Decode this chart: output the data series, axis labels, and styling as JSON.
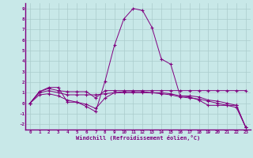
{
  "xlabel": "Windchill (Refroidissement éolien,°C)",
  "bg_color": "#c8e8e8",
  "line_color": "#800080",
  "grid_color": "#aacccc",
  "xlim": [
    -0.5,
    23.5
  ],
  "ylim": [
    -2.5,
    9.5
  ],
  "yticks": [
    -2,
    -1,
    0,
    1,
    2,
    3,
    4,
    5,
    6,
    7,
    8,
    9
  ],
  "xticks": [
    0,
    1,
    2,
    3,
    4,
    5,
    6,
    7,
    8,
    9,
    10,
    11,
    12,
    13,
    14,
    15,
    16,
    17,
    18,
    19,
    20,
    21,
    22,
    23
  ],
  "line1_x": [
    0,
    1,
    2,
    3,
    4,
    5,
    6,
    7,
    8,
    9,
    10,
    11,
    12,
    13,
    14,
    15,
    16,
    17,
    18,
    19,
    20,
    21,
    22,
    23
  ],
  "line1_y": [
    0,
    1.1,
    1.5,
    1.5,
    0.1,
    0.1,
    -0.3,
    -0.8,
    2.1,
    5.5,
    8.0,
    9.0,
    8.8,
    7.2,
    4.2,
    3.7,
    0.7,
    0.6,
    0.3,
    -0.2,
    -0.2,
    -0.2,
    -0.2,
    -2.3
  ],
  "line2_x": [
    0,
    1,
    2,
    3,
    4,
    5,
    6,
    7,
    8,
    9,
    10,
    11,
    12,
    13,
    14,
    15,
    16,
    17,
    18,
    19,
    20,
    21,
    22,
    23
  ],
  "line2_y": [
    0,
    1.1,
    1.4,
    1.2,
    1.1,
    1.1,
    1.1,
    0.5,
    1.2,
    1.2,
    1.2,
    1.2,
    1.2,
    1.2,
    1.2,
    1.2,
    1.2,
    1.2,
    1.2,
    1.2,
    1.2,
    1.2,
    1.2,
    1.2
  ],
  "line3_x": [
    0,
    1,
    2,
    3,
    4,
    5,
    6,
    7,
    8,
    9,
    10,
    11,
    12,
    13,
    14,
    15,
    16,
    17,
    18,
    19,
    20,
    21,
    22,
    23
  ],
  "line3_y": [
    0,
    1.0,
    1.2,
    1.0,
    0.8,
    0.8,
    0.8,
    0.8,
    0.9,
    1.0,
    1.0,
    1.0,
    1.0,
    1.0,
    1.0,
    0.9,
    0.7,
    0.7,
    0.6,
    0.3,
    0.2,
    0.0,
    -0.2,
    -2.3
  ],
  "line4_x": [
    0,
    1,
    2,
    3,
    4,
    5,
    6,
    7,
    8,
    9,
    10,
    11,
    12,
    13,
    14,
    15,
    16,
    17,
    18,
    19,
    20,
    21,
    22,
    23
  ],
  "line4_y": [
    0,
    0.8,
    0.9,
    0.7,
    0.3,
    0.1,
    -0.1,
    -0.5,
    0.5,
    1.0,
    1.1,
    1.1,
    1.1,
    1.0,
    0.9,
    0.8,
    0.6,
    0.5,
    0.4,
    0.2,
    0.0,
    -0.2,
    -0.4,
    -2.3
  ]
}
